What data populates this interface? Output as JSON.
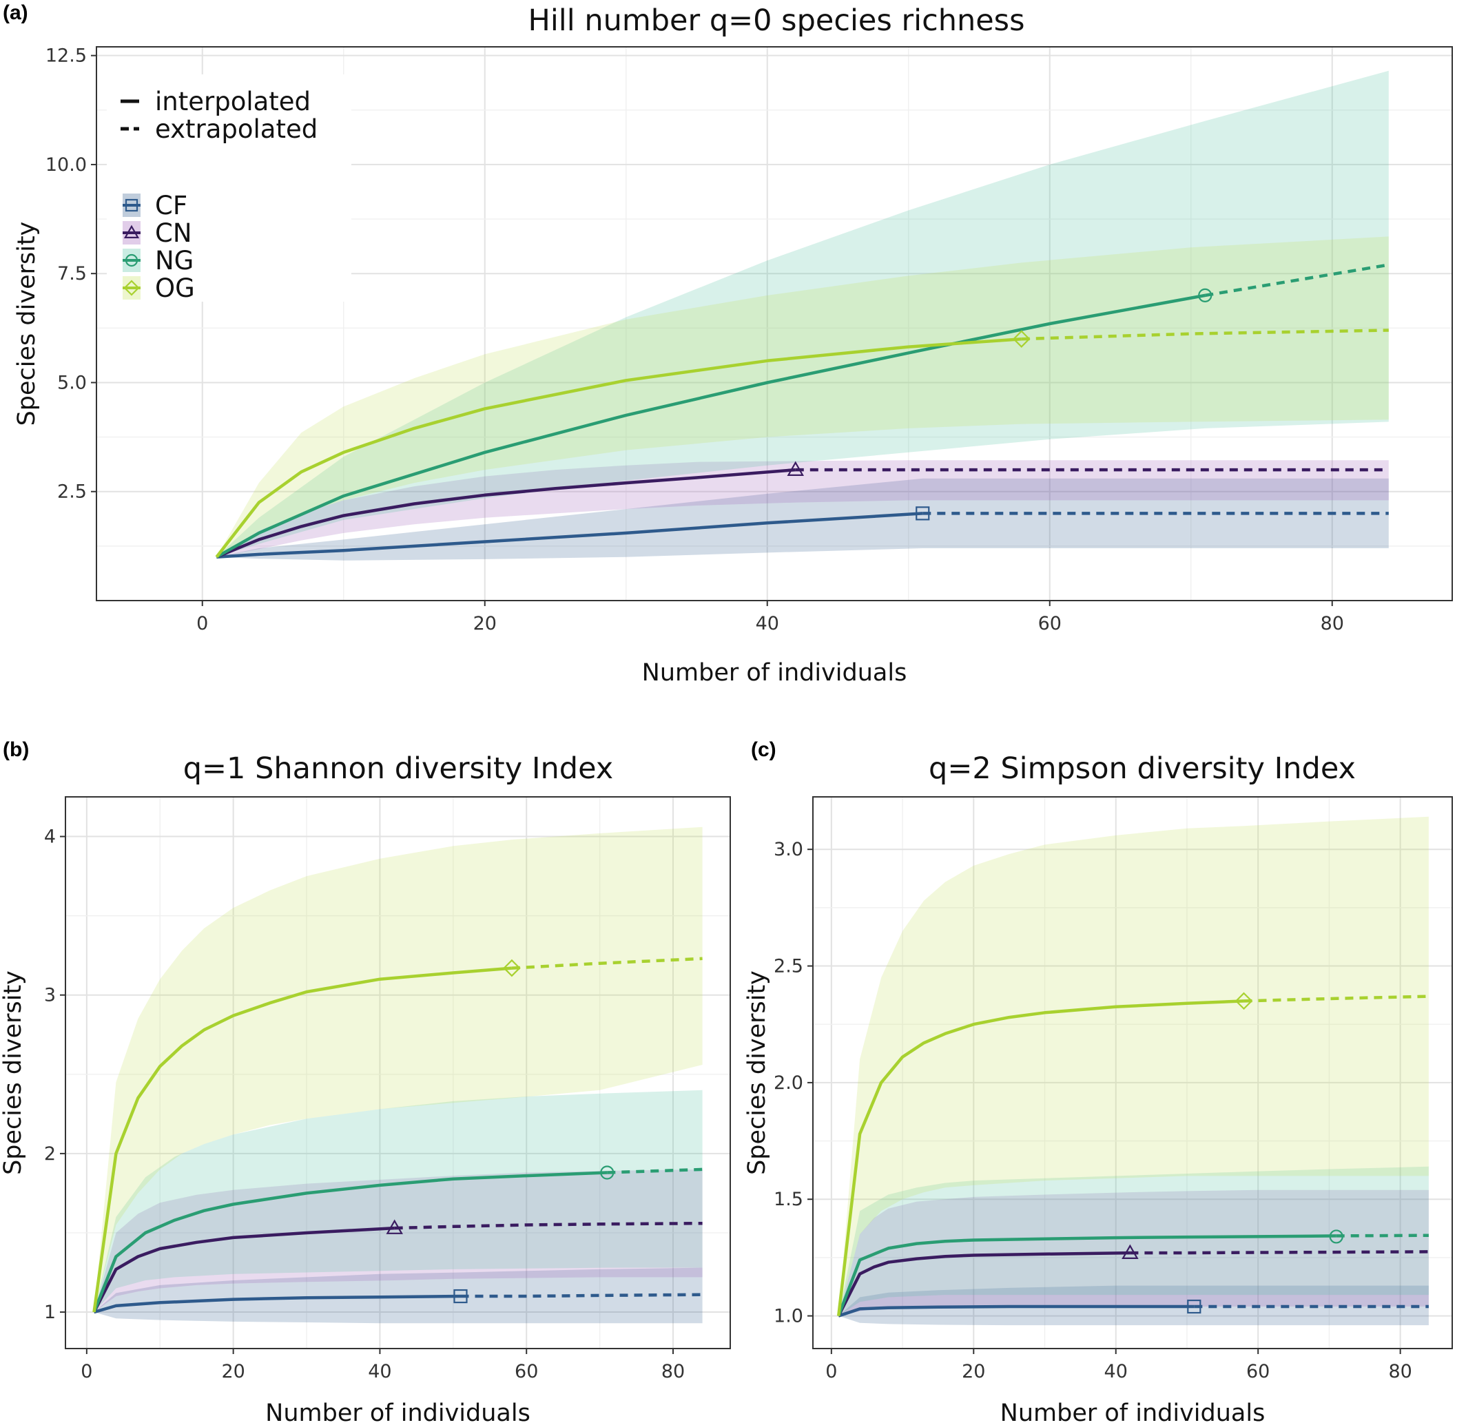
{
  "legend": {
    "line_types": [
      {
        "label": "interpolated",
        "style": "solid"
      },
      {
        "label": "extrapolated",
        "style": "dashed"
      }
    ],
    "groups": [
      {
        "key": "CF",
        "label": "CF",
        "shape": "square",
        "line": "#2e5a8c",
        "fill": "#2e5a8c"
      },
      {
        "key": "CN",
        "label": "CN",
        "shape": "triangle",
        "line": "#3a1c60",
        "fill": "#9b59b6"
      },
      {
        "key": "NG",
        "label": "NG",
        "shape": "circle",
        "line": "#2a9d73",
        "fill": "#4fbfa0"
      },
      {
        "key": "OG",
        "label": "OG",
        "shape": "diamond",
        "line": "#a8d12f",
        "fill": "#c5e05a"
      }
    ]
  },
  "chart_data": [
    {
      "panel": "(a)",
      "type": "line",
      "title": "Hill number q=0 species richness",
      "xlabel": "Number of individuals",
      "ylabel": "Species diversity",
      "xlim": [
        -7.5,
        88.5
      ],
      "ylim": [
        0,
        12.7
      ],
      "xticks": [
        0,
        20,
        40,
        60,
        80
      ],
      "yticks": [
        2.5,
        5.0,
        7.5,
        10.0,
        12.5
      ],
      "ytick_labels": [
        "2.5",
        "5.0",
        "7.5",
        "10.0",
        "12.5"
      ],
      "grid": true,
      "legend_position": "top-left",
      "series": [
        {
          "name": "CF",
          "sample_size": 51,
          "observed": 2.0,
          "x": [
            1,
            4,
            10,
            20,
            30,
            40,
            51,
            60,
            70,
            84
          ],
          "y": [
            1.0,
            1.06,
            1.15,
            1.35,
            1.55,
            1.78,
            2.0,
            2.0,
            2.0,
            2.0
          ],
          "lower": [
            1.0,
            0.96,
            0.92,
            0.95,
            1.0,
            1.1,
            1.2,
            1.2,
            1.2,
            1.2
          ],
          "upper": [
            1.0,
            1.2,
            1.4,
            1.75,
            2.1,
            2.45,
            2.8,
            2.8,
            2.8,
            2.8
          ]
        },
        {
          "name": "CN",
          "sample_size": 42,
          "observed": 3.0,
          "x": [
            1,
            4,
            7,
            10,
            15,
            20,
            25,
            30,
            35,
            42,
            50,
            60,
            70,
            84
          ],
          "y": [
            1.0,
            1.4,
            1.7,
            1.95,
            2.22,
            2.42,
            2.57,
            2.7,
            2.82,
            3.0,
            3.0,
            3.0,
            3.0,
            3.0
          ],
          "lower": [
            1.0,
            1.18,
            1.38,
            1.55,
            1.75,
            1.9,
            2.0,
            2.1,
            2.18,
            2.25,
            2.3,
            2.3,
            2.3,
            2.3
          ],
          "upper": [
            1.0,
            1.6,
            2.0,
            2.3,
            2.62,
            2.85,
            3.0,
            3.1,
            3.18,
            3.2,
            3.22,
            3.22,
            3.22,
            3.22
          ]
        },
        {
          "name": "NG",
          "sample_size": 71,
          "observed": 7.0,
          "x": [
            1,
            4,
            10,
            20,
            30,
            40,
            50,
            60,
            71,
            84
          ],
          "y": [
            1.0,
            1.55,
            2.4,
            3.4,
            4.25,
            5.0,
            5.68,
            6.35,
            7.0,
            7.7
          ],
          "lower": [
            1.0,
            1.3,
            1.85,
            2.35,
            2.75,
            3.1,
            3.4,
            3.7,
            3.95,
            4.1
          ],
          "upper": [
            1.0,
            1.9,
            3.3,
            5.0,
            6.5,
            7.8,
            8.95,
            10.0,
            11.0,
            12.15
          ]
        },
        {
          "name": "OG",
          "sample_size": 58,
          "observed": 6.0,
          "x": [
            1,
            4,
            7,
            10,
            15,
            20,
            30,
            40,
            50,
            58,
            70,
            84
          ],
          "y": [
            1.0,
            2.25,
            2.95,
            3.4,
            3.95,
            4.4,
            5.05,
            5.5,
            5.82,
            6.0,
            6.12,
            6.2
          ],
          "lower": [
            1.0,
            1.6,
            2.0,
            2.3,
            2.7,
            3.0,
            3.45,
            3.75,
            3.95,
            4.05,
            4.1,
            4.15
          ],
          "upper": [
            1.0,
            2.7,
            3.85,
            4.45,
            5.1,
            5.65,
            6.45,
            7.0,
            7.45,
            7.75,
            8.1,
            8.35
          ]
        }
      ]
    },
    {
      "panel": "(b)",
      "type": "line",
      "title": "q=1 Shannon diversity Index",
      "xlabel": "Number of individuals",
      "ylabel": "Species diversity",
      "xlim": [
        -2.9,
        87.8
      ],
      "ylim": [
        0.77,
        4.25
      ],
      "xticks": [
        0,
        20,
        40,
        60,
        80
      ],
      "yticks": [
        1,
        2,
        3,
        4
      ],
      "ytick_labels": [
        "1",
        "2",
        "3",
        "4"
      ],
      "grid": true,
      "series": [
        {
          "name": "CF",
          "sample_size": 51,
          "observed": 1.1,
          "x": [
            1,
            4,
            10,
            20,
            30,
            40,
            51,
            60,
            70,
            84
          ],
          "y": [
            1.0,
            1.04,
            1.06,
            1.08,
            1.09,
            1.095,
            1.1,
            1.1,
            1.105,
            1.11
          ],
          "lower": [
            1.0,
            0.96,
            0.95,
            0.94,
            0.935,
            0.93,
            0.93,
            0.93,
            0.93,
            0.93
          ],
          "upper": [
            1.0,
            1.12,
            1.17,
            1.2,
            1.22,
            1.24,
            1.25,
            1.26,
            1.27,
            1.28
          ]
        },
        {
          "name": "CN",
          "sample_size": 42,
          "observed": 1.53,
          "x": [
            1,
            4,
            7,
            10,
            15,
            20,
            30,
            42,
            50,
            60,
            70,
            84
          ],
          "y": [
            1.0,
            1.27,
            1.35,
            1.4,
            1.44,
            1.47,
            1.5,
            1.53,
            1.54,
            1.55,
            1.555,
            1.56
          ],
          "lower": [
            1.0,
            1.1,
            1.13,
            1.15,
            1.17,
            1.18,
            1.19,
            1.2,
            1.21,
            1.215,
            1.22,
            1.22
          ],
          "upper": [
            1.0,
            1.5,
            1.62,
            1.69,
            1.74,
            1.77,
            1.81,
            1.84,
            1.86,
            1.88,
            1.89,
            1.9
          ]
        },
        {
          "name": "NG",
          "sample_size": 71,
          "observed": 1.88,
          "x": [
            1,
            4,
            8,
            12,
            16,
            20,
            30,
            40,
            50,
            60,
            71,
            84
          ],
          "y": [
            1.0,
            1.35,
            1.5,
            1.58,
            1.64,
            1.68,
            1.75,
            1.8,
            1.84,
            1.86,
            1.88,
            1.9
          ],
          "lower": [
            1.0,
            1.15,
            1.2,
            1.22,
            1.23,
            1.24,
            1.25,
            1.26,
            1.27,
            1.275,
            1.28,
            1.28
          ],
          "upper": [
            1.0,
            1.6,
            1.85,
            1.98,
            2.06,
            2.12,
            2.22,
            2.28,
            2.33,
            2.36,
            2.38,
            2.4
          ]
        },
        {
          "name": "OG",
          "sample_size": 58,
          "observed": 3.17,
          "x": [
            1,
            4,
            7,
            10,
            13,
            16,
            20,
            25,
            30,
            40,
            50,
            58,
            70,
            84
          ],
          "y": [
            1.0,
            2.0,
            2.35,
            2.55,
            2.68,
            2.78,
            2.87,
            2.95,
            3.02,
            3.1,
            3.14,
            3.17,
            3.2,
            3.23
          ],
          "lower": [
            1.0,
            1.55,
            1.75,
            1.9,
            2.0,
            2.06,
            2.12,
            2.18,
            2.22,
            2.28,
            2.32,
            2.35,
            2.4,
            2.56
          ],
          "upper": [
            1.0,
            2.45,
            2.85,
            3.1,
            3.28,
            3.42,
            3.55,
            3.66,
            3.75,
            3.86,
            3.94,
            3.98,
            4.02,
            4.06
          ]
        }
      ]
    },
    {
      "panel": "(c)",
      "type": "line",
      "title": "q=2 Simpson diversity Index",
      "xlabel": "Number of individuals",
      "ylabel": "Species diversity",
      "xlim": [
        -2.6,
        87.3
      ],
      "ylim": [
        0.86,
        3.225
      ],
      "xticks": [
        0,
        20,
        40,
        60,
        80
      ],
      "yticks": [
        1.0,
        1.5,
        2.0,
        2.5,
        3.0
      ],
      "ytick_labels": [
        "1.0",
        "1.5",
        "2.0",
        "2.5",
        "3.0"
      ],
      "grid": true,
      "series": [
        {
          "name": "CF",
          "sample_size": 51,
          "observed": 1.04,
          "x": [
            1,
            4,
            8,
            15,
            25,
            40,
            51,
            60,
            70,
            84
          ],
          "y": [
            1.0,
            1.03,
            1.035,
            1.038,
            1.04,
            1.04,
            1.04,
            1.04,
            1.04,
            1.04
          ],
          "lower": [
            1.0,
            0.97,
            0.965,
            0.962,
            0.96,
            0.96,
            0.96,
            0.96,
            0.96,
            0.96
          ],
          "upper": [
            1.0,
            1.08,
            1.1,
            1.11,
            1.12,
            1.13,
            1.13,
            1.13,
            1.13,
            1.13
          ]
        },
        {
          "name": "CN",
          "sample_size": 42,
          "observed": 1.27,
          "x": [
            1,
            4,
            6,
            8,
            12,
            16,
            20,
            30,
            42,
            50,
            60,
            70,
            84
          ],
          "y": [
            1.0,
            1.18,
            1.21,
            1.23,
            1.245,
            1.255,
            1.26,
            1.265,
            1.27,
            1.27,
            1.272,
            1.273,
            1.275
          ],
          "lower": [
            1.0,
            1.02,
            1.03,
            1.03,
            1.035,
            1.035,
            1.038,
            1.04,
            1.04,
            1.04,
            1.04,
            1.04,
            1.04
          ],
          "upper": [
            1.0,
            1.35,
            1.42,
            1.46,
            1.49,
            1.5,
            1.51,
            1.52,
            1.53,
            1.535,
            1.54,
            1.54,
            1.54
          ]
        },
        {
          "name": "NG",
          "sample_size": 71,
          "observed": 1.34,
          "x": [
            1,
            4,
            8,
            12,
            16,
            20,
            30,
            40,
            50,
            60,
            71,
            84
          ],
          "y": [
            1.0,
            1.24,
            1.29,
            1.31,
            1.32,
            1.325,
            1.33,
            1.335,
            1.338,
            1.34,
            1.343,
            1.345
          ],
          "lower": [
            1.0,
            1.06,
            1.08,
            1.085,
            1.09,
            1.09,
            1.09,
            1.09,
            1.09,
            1.09,
            1.09,
            1.09
          ],
          "upper": [
            1.0,
            1.45,
            1.52,
            1.55,
            1.57,
            1.58,
            1.59,
            1.6,
            1.61,
            1.62,
            1.63,
            1.64
          ]
        },
        {
          "name": "OG",
          "sample_size": 58,
          "observed": 2.35,
          "x": [
            1,
            4,
            7,
            10,
            13,
            16,
            20,
            25,
            30,
            40,
            50,
            58,
            70,
            84
          ],
          "y": [
            1.0,
            1.78,
            2.0,
            2.11,
            2.17,
            2.21,
            2.25,
            2.28,
            2.3,
            2.325,
            2.34,
            2.35,
            2.36,
            2.37
          ],
          "lower": [
            1.0,
            1.35,
            1.45,
            1.5,
            1.53,
            1.55,
            1.56,
            1.57,
            1.58,
            1.59,
            1.6,
            1.6,
            1.6,
            1.6
          ],
          "upper": [
            1.0,
            2.1,
            2.45,
            2.65,
            2.78,
            2.86,
            2.93,
            2.98,
            3.02,
            3.06,
            3.09,
            3.1,
            3.12,
            3.14
          ]
        }
      ]
    }
  ]
}
